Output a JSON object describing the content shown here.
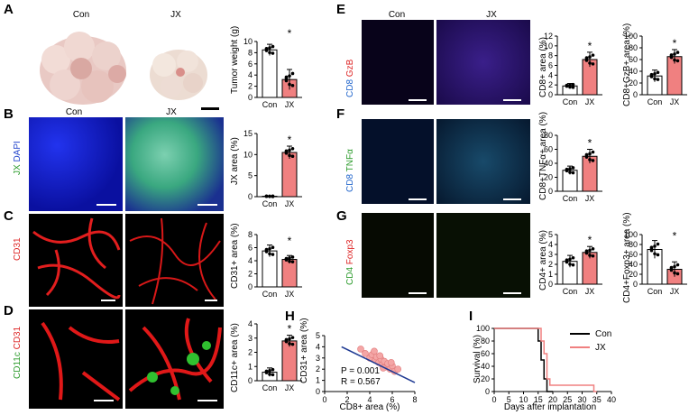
{
  "panels": {
    "A": {
      "letter": "A",
      "con": "Con",
      "jx": "JX",
      "ylabel": "Tumor weight (g)"
    },
    "B": {
      "letter": "B",
      "con": "Con",
      "jx": "JX",
      "stain_a": "JX",
      "stain_b": "DAPI",
      "ylabel": "JX area (%)"
    },
    "C": {
      "letter": "C",
      "stain": "CD31",
      "ylabel": "CD31+ area (%)"
    },
    "D": {
      "letter": "D",
      "stain_a": "CD11c",
      "stain_b": "CD31",
      "ylabel": "CD11c+ area (%)"
    },
    "E": {
      "letter": "E",
      "con": "Con",
      "jx": "JX",
      "stain_a": "CD8",
      "stain_b": "GzB",
      "ylabel1": "CD8+ area (%)",
      "ylabel2": "CD8+GzB+ area (%)"
    },
    "F": {
      "letter": "F",
      "stain_a": "CD8",
      "stain_b": "TNFα",
      "ylabel": "CD8+TNFα+ area (%)"
    },
    "G": {
      "letter": "G",
      "stain_a": "CD4",
      "stain_b": "Foxp3",
      "ylabel1": "CD4+ area (%)",
      "ylabel2": "CD4+Foxp3+ area (%)"
    },
    "H": {
      "letter": "H",
      "ylabel": "CD31+ area (%)",
      "xlabel": "CD8+ area (%)",
      "p": "P = 0.001",
      "r": "R = 0.567"
    },
    "I": {
      "letter": "I",
      "ylabel": "Survival (%)",
      "xlabel": "Days after implantation",
      "legend_con": "Con",
      "legend_jx": "JX"
    }
  },
  "colors": {
    "con_bar": "#ffffff",
    "jx_bar": "#f08080",
    "line_jx": "#f08080",
    "line_con": "#000000",
    "reg": "#1f3a93"
  },
  "chart_data": [
    {
      "id": "A",
      "type": "bar",
      "categories": [
        "Con",
        "JX"
      ],
      "values": [
        8.5,
        3.2
      ],
      "errors": [
        1.0,
        1.8
      ],
      "ylim": [
        0,
        10
      ],
      "yticks": [
        0,
        2,
        4,
        6,
        8,
        10
      ],
      "sig": "*"
    },
    {
      "id": "B",
      "type": "bar",
      "categories": [
        "Con",
        "JX"
      ],
      "values": [
        0.1,
        10.5
      ],
      "errors": [
        0.1,
        1.5
      ],
      "ylim": [
        0,
        15
      ],
      "yticks": [
        0,
        5,
        10,
        15
      ],
      "sig": "*"
    },
    {
      "id": "C",
      "type": "bar",
      "categories": [
        "Con",
        "JX"
      ],
      "values": [
        5.5,
        4.2
      ],
      "errors": [
        0.9,
        0.6
      ],
      "ylim": [
        0,
        8
      ],
      "yticks": [
        0,
        2,
        4,
        6,
        8
      ],
      "sig": "*"
    },
    {
      "id": "D",
      "type": "bar",
      "categories": [
        "Con",
        "JX"
      ],
      "values": [
        0.6,
        2.8
      ],
      "errors": [
        0.3,
        0.4
      ],
      "ylim": [
        0,
        4
      ],
      "yticks": [
        0,
        1,
        2,
        3,
        4
      ],
      "sig": "*"
    },
    {
      "id": "E1",
      "type": "bar",
      "categories": [
        "Con",
        "JX"
      ],
      "values": [
        1.8,
        7.2
      ],
      "errors": [
        0.5,
        1.5
      ],
      "ylim": [
        0,
        12
      ],
      "yticks": [
        0,
        2,
        4,
        6,
        8,
        10,
        12
      ],
      "sig": "*"
    },
    {
      "id": "E2",
      "type": "bar",
      "categories": [
        "Con",
        "JX"
      ],
      "values": [
        32,
        65
      ],
      "errors": [
        10,
        12
      ],
      "ylim": [
        0,
        100
      ],
      "yticks": [
        0,
        20,
        40,
        60,
        80,
        100
      ],
      "sig": "*"
    },
    {
      "id": "F",
      "type": "bar",
      "categories": [
        "Con",
        "JX"
      ],
      "values": [
        30,
        50
      ],
      "errors": [
        6,
        10
      ],
      "ylim": [
        0,
        80
      ],
      "yticks": [
        0,
        20,
        40,
        60,
        80
      ],
      "sig": "*"
    },
    {
      "id": "G1",
      "type": "bar",
      "categories": [
        "Con",
        "JX"
      ],
      "values": [
        2.3,
        3.2
      ],
      "errors": [
        0.6,
        0.6
      ],
      "ylim": [
        0,
        5
      ],
      "yticks": [
        0,
        1,
        2,
        3,
        4,
        5
      ],
      "sig": "*"
    },
    {
      "id": "G2",
      "type": "bar",
      "categories": [
        "Con",
        "JX"
      ],
      "values": [
        70,
        30
      ],
      "errors": [
        18,
        15
      ],
      "ylim": [
        0,
        100
      ],
      "yticks": [
        0,
        20,
        40,
        60,
        80,
        100
      ],
      "sig": "*"
    },
    {
      "id": "H",
      "type": "scatter",
      "xlim": [
        0,
        8
      ],
      "ylim": [
        0,
        5
      ],
      "xticks": [
        0,
        2,
        4,
        6,
        8
      ],
      "yticks": [
        0,
        1,
        2,
        3,
        4,
        5
      ],
      "x": [
        3.2,
        3.6,
        4.0,
        4.2,
        4.5,
        4.6,
        4.8,
        5.0,
        5.1,
        5.3,
        5.5,
        5.6,
        5.8,
        6.0,
        6.2,
        6.5,
        4.4,
        5.2,
        5.9,
        4.9
      ],
      "y": [
        3.8,
        3.4,
        3.0,
        3.3,
        2.8,
        3.1,
        2.6,
        2.9,
        2.4,
        2.7,
        2.2,
        2.5,
        2.0,
        2.3,
        1.8,
        2.0,
        3.6,
        2.1,
        2.6,
        3.2
      ],
      "fit": [
        [
          1.5,
          4.0
        ],
        [
          8.0,
          0.8
        ]
      ]
    },
    {
      "id": "I",
      "type": "line",
      "xlim": [
        0,
        40
      ],
      "ylim": [
        0,
        100
      ],
      "xticks": [
        0,
        5,
        10,
        15,
        20,
        25,
        30,
        35,
        40
      ],
      "yticks": [
        0,
        20,
        40,
        60,
        80,
        100
      ],
      "series": [
        {
          "name": "Con",
          "points": [
            [
              0,
              100
            ],
            [
              15,
              100
            ],
            [
              15,
              80
            ],
            [
              16,
              80
            ],
            [
              16,
              50
            ],
            [
              17,
              50
            ],
            [
              17,
              20
            ],
            [
              18,
              20
            ],
            [
              18,
              0
            ],
            [
              20,
              0
            ]
          ]
        },
        {
          "name": "JX",
          "points": [
            [
              0,
              100
            ],
            [
              16,
              100
            ],
            [
              16,
              80
            ],
            [
              17,
              80
            ],
            [
              17,
              60
            ],
            [
              18,
              60
            ],
            [
              18,
              20
            ],
            [
              19,
              20
            ],
            [
              19,
              10
            ],
            [
              34,
              10
            ],
            [
              34,
              0
            ],
            [
              35,
              0
            ]
          ]
        }
      ]
    }
  ]
}
